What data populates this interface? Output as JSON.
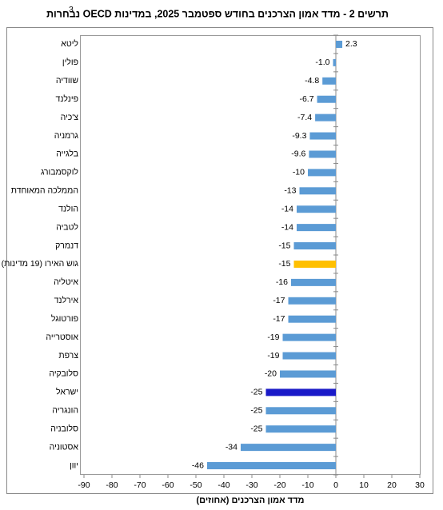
{
  "chart_data": {
    "type": "hbar",
    "title": "תרשים 2 - מדד אמון הצרכנים בחודש ספטמבר 2025, במדינות OECD נבחרות",
    "title_note": "3",
    "x_label": "מדד אמון הצרכנים (אחוזים)",
    "categories": [
      "ליטא",
      "פולין",
      "שוודיה",
      "פינלנד",
      "צ'כיה",
      "גרמניה",
      "בלגייה",
      "לוקסמבורג",
      "הממלכה המאוחדת",
      "הולנד",
      "לטביה",
      "דנמרק",
      "גוש האירו (19 מדינות)",
      "איטליה",
      "אירלנד",
      "פורטוגל",
      "אוסטרייה",
      "צרפת",
      "סלובקיה",
      "ישראל",
      "הונגריה",
      "סלובניה",
      "אסטוניה",
      "יוון"
    ],
    "values": [
      2.3,
      -1.0,
      -4.8,
      -6.7,
      -7.4,
      -9.3,
      -9.6,
      -10,
      -13,
      -14,
      -14,
      -15,
      -15,
      -16,
      -17,
      -17,
      -19,
      -19,
      -20,
      -25,
      -25,
      -25,
      -34,
      -46
    ],
    "value_labels": [
      "2.3",
      "-1.0",
      "-4.8",
      "-6.7",
      "-7.4",
      "-9.3",
      "-9.6",
      "-10",
      "-13",
      "-14",
      "-14",
      "-15",
      "-15",
      "-16",
      "-17",
      "-17",
      "-19",
      "-19",
      "-20",
      "-25",
      "-25",
      "-25",
      "-34",
      "-46"
    ],
    "colors": [
      "#5b9bd5",
      "#5b9bd5",
      "#5b9bd5",
      "#5b9bd5",
      "#5b9bd5",
      "#5b9bd5",
      "#5b9bd5",
      "#5b9bd5",
      "#5b9bd5",
      "#5b9bd5",
      "#5b9bd5",
      "#5b9bd5",
      "#ffc000",
      "#5b9bd5",
      "#5b9bd5",
      "#5b9bd5",
      "#5b9bd5",
      "#5b9bd5",
      "#5b9bd5",
      "#1a1ac8",
      "#5b9bd5",
      "#5b9bd5",
      "#5b9bd5",
      "#5b9bd5"
    ],
    "xlim": [
      -90,
      30
    ],
    "xticks": [
      -90,
      -80,
      -70,
      -60,
      -50,
      -40,
      -30,
      -20,
      -10,
      0,
      10,
      20,
      30
    ],
    "grid": false
  }
}
